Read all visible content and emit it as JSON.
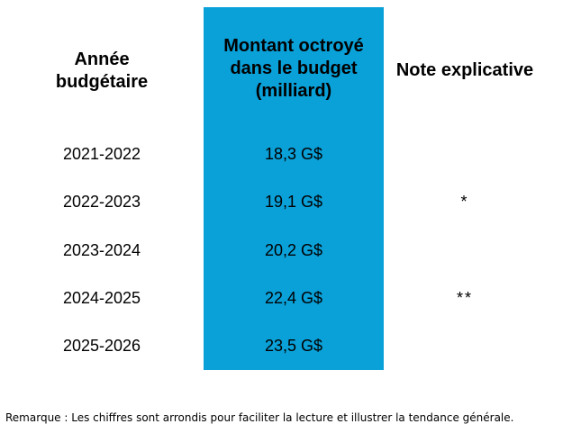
{
  "table": {
    "headers": {
      "year": [
        "Année",
        "budgétaire"
      ],
      "amount": [
        "Montant octroyé",
        "dans le budget",
        "(milliard)"
      ],
      "note": "Note explicative"
    },
    "rows": [
      {
        "year": "2021-2022",
        "amount": "18,3 G$",
        "note": ""
      },
      {
        "year": "2022-2023",
        "amount": "19,1 G$",
        "note": "*"
      },
      {
        "year": "2023-2024",
        "amount": "20,2 G$",
        "note": ""
      },
      {
        "year": "2024-2025",
        "amount": "22,4 G$",
        "note": "**"
      },
      {
        "year": "2025-2026",
        "amount": "23,5 G$",
        "note": ""
      }
    ],
    "highlight_color": "#0aa0d8"
  },
  "footnote": "Remarque : Les chiffres sont arrondis pour faciliter la lecture et illustrer la tendance générale."
}
